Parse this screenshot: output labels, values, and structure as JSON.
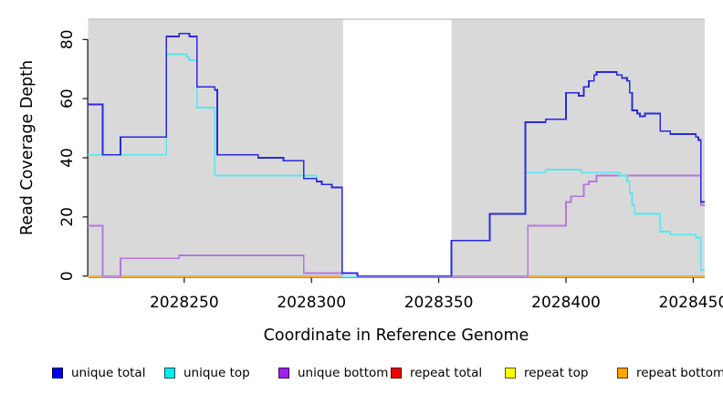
{
  "figure": {
    "x_axis_title": "Coordinate in Reference Genome",
    "y_axis_title": "Read Coverage Depth"
  },
  "legend": {
    "items": [
      {
        "label": "unique total",
        "color": "#0000EE"
      },
      {
        "label": "unique top",
        "color": "#00EEEE"
      },
      {
        "label": "unique bottom",
        "color": "#A020F0"
      },
      {
        "label": "repeat total",
        "color": "#EE0000"
      },
      {
        "label": "repeat top",
        "color": "#FFFF00"
      },
      {
        "label": "repeat bottom",
        "color": "#FFA500"
      }
    ]
  },
  "chart_data": {
    "type": "line",
    "step": true,
    "title": "",
    "xlabel": "Coordinate in Reference Genome",
    "ylabel": "Read Coverage Depth",
    "x_ticks": [
      2028250,
      2028300,
      2028350,
      2028400,
      2028450
    ],
    "y_ticks": [
      0,
      20,
      40,
      60,
      80
    ],
    "xlim": [
      2028212,
      2028454.5
    ],
    "ylim": [
      0,
      87
    ],
    "grid": false,
    "legend_position": "bottom",
    "panel_bg": "#D9D9D9",
    "gap_band": {
      "x0": 2028312.4,
      "x1": 2028355,
      "color": "#FFFFFF"
    },
    "x_end": 2028454.5,
    "series": [
      {
        "name": "repeat total",
        "color": "#CC0000",
        "points": [
          [
            2028212,
            0
          ]
        ]
      },
      {
        "name": "repeat top",
        "color": "#FFFF00",
        "points": [
          [
            2028212,
            0
          ]
        ]
      },
      {
        "name": "repeat bottom",
        "color": "#FFA500",
        "points": [
          [
            2028212,
            0
          ]
        ]
      },
      {
        "name": "unique bottom",
        "color": "#B476DC",
        "points": [
          [
            2028212,
            17
          ],
          [
            2028218,
            0
          ],
          [
            2028225,
            6
          ],
          [
            2028248,
            7
          ],
          [
            2028297,
            1
          ],
          [
            2028318,
            0
          ],
          [
            2028385,
            17
          ],
          [
            2028400,
            25
          ],
          [
            2028402,
            27
          ],
          [
            2028407,
            31
          ],
          [
            2028409,
            32
          ],
          [
            2028412,
            34
          ],
          [
            2028453,
            24
          ]
        ]
      },
      {
        "name": "unique top",
        "color": "#5CE4EF",
        "points": [
          [
            2028212,
            41
          ],
          [
            2028243,
            75
          ],
          [
            2028251,
            74
          ],
          [
            2028252,
            73
          ],
          [
            2028255,
            57
          ],
          [
            2028262,
            34
          ],
          [
            2028302,
            32
          ],
          [
            2028304,
            31
          ],
          [
            2028308,
            30
          ],
          [
            2028312,
            0
          ],
          [
            2028355,
            12
          ],
          [
            2028370,
            21
          ],
          [
            2028384,
            35
          ],
          [
            2028392,
            36
          ],
          [
            2028406,
            35
          ],
          [
            2028421,
            34
          ],
          [
            2028424,
            32
          ],
          [
            2028425,
            28
          ],
          [
            2028426,
            24
          ],
          [
            2028427,
            21
          ],
          [
            2028437,
            15
          ],
          [
            2028441,
            14
          ],
          [
            2028451,
            13
          ],
          [
            2028453,
            2
          ]
        ]
      },
      {
        "name": "unique total",
        "color": "#2A2ADB",
        "points": [
          [
            2028212,
            58
          ],
          [
            2028218,
            41
          ],
          [
            2028225,
            47
          ],
          [
            2028243,
            81
          ],
          [
            2028248,
            82
          ],
          [
            2028252,
            81
          ],
          [
            2028255,
            64
          ],
          [
            2028262,
            63
          ],
          [
            2028263,
            41
          ],
          [
            2028279,
            40
          ],
          [
            2028289,
            39
          ],
          [
            2028297,
            33
          ],
          [
            2028302,
            32
          ],
          [
            2028304,
            31
          ],
          [
            2028308,
            30
          ],
          [
            2028312,
            1
          ],
          [
            2028318,
            0
          ],
          [
            2028355,
            12
          ],
          [
            2028370,
            21
          ],
          [
            2028384,
            52
          ],
          [
            2028392,
            53
          ],
          [
            2028400,
            62
          ],
          [
            2028405,
            61
          ],
          [
            2028407,
            64
          ],
          [
            2028409,
            66
          ],
          [
            2028411,
            68
          ],
          [
            2028412,
            69
          ],
          [
            2028420,
            68
          ],
          [
            2028422,
            67
          ],
          [
            2028424,
            66
          ],
          [
            2028425,
            62
          ],
          [
            2028426,
            56
          ],
          [
            2028428,
            55
          ],
          [
            2028429,
            54
          ],
          [
            2028431,
            55
          ],
          [
            2028437,
            49
          ],
          [
            2028441,
            48
          ],
          [
            2028451,
            47
          ],
          [
            2028452,
            46
          ],
          [
            2028453,
            25
          ]
        ]
      }
    ]
  }
}
